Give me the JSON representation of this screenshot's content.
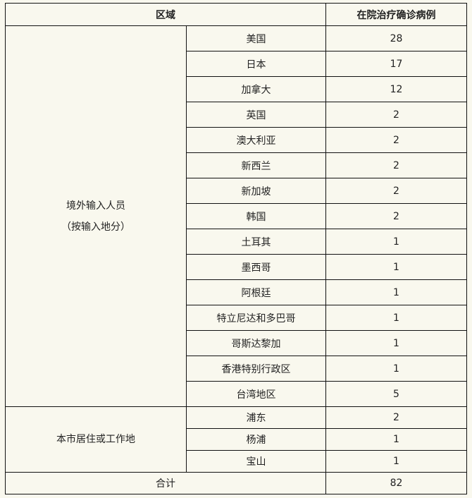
{
  "header": {
    "region": "区域",
    "count": "在院治疗确诊病例"
  },
  "groups": [
    {
      "label_line1": "境外输入人员",
      "label_line2": "（按输入地分）",
      "rows": [
        {
          "name": "美国",
          "count": "28"
        },
        {
          "name": "日本",
          "count": "17"
        },
        {
          "name": "加拿大",
          "count": "12"
        },
        {
          "name": "英国",
          "count": "2"
        },
        {
          "name": "澳大利亚",
          "count": "2"
        },
        {
          "name": "新西兰",
          "count": "2"
        },
        {
          "name": "新加坡",
          "count": "2"
        },
        {
          "name": "韩国",
          "count": "2"
        },
        {
          "name": "土耳其",
          "count": "1"
        },
        {
          "name": "墨西哥",
          "count": "1"
        },
        {
          "name": "阿根廷",
          "count": "1"
        },
        {
          "name": "特立尼达和多巴哥",
          "count": "1"
        },
        {
          "name": "哥斯达黎加",
          "count": "1"
        },
        {
          "name": "香港特别行政区",
          "count": "1"
        },
        {
          "name": "台湾地区",
          "count": "5"
        }
      ]
    },
    {
      "label_line1": "本市居住或工作地",
      "rows": [
        {
          "name": "浦东",
          "count": "2"
        },
        {
          "name": "杨浦",
          "count": "1"
        },
        {
          "name": "宝山",
          "count": "1"
        }
      ]
    }
  ],
  "total": {
    "label": "合计",
    "count": "82"
  }
}
